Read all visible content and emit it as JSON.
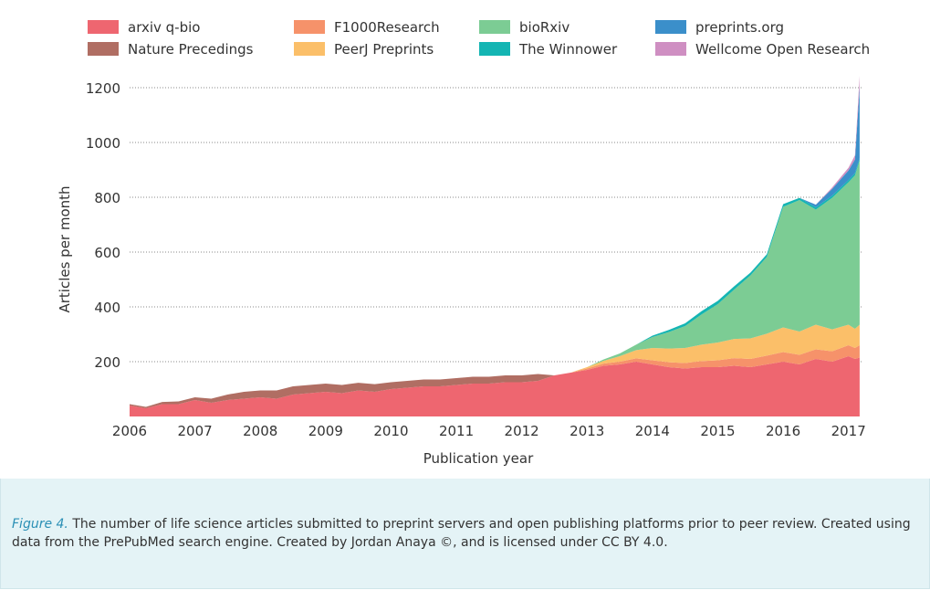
{
  "chart_data": {
    "type": "area",
    "stacked": true,
    "xlabel": "Publication year",
    "ylabel": "Articles per month",
    "xlim": [
      2006.0,
      2017.2
    ],
    "ylim": [
      0,
      1250
    ],
    "x_ticks": [
      2006,
      2007,
      2008,
      2009,
      2010,
      2011,
      2012,
      2013,
      2014,
      2015,
      2016,
      2017
    ],
    "y_ticks": [
      200,
      400,
      600,
      800,
      1000,
      1200
    ],
    "grid": "horizontal dotted",
    "legend_position": "top",
    "colors": {
      "arxiv q-bio": "#ee6670",
      "Nature Precedings": "#b06e63",
      "F1000Research": "#f6926a",
      "PeerJ Preprints": "#fbbf69",
      "bioRxiv": "#7ccc94",
      "The Winnower": "#14b5b3",
      "preprints.org": "#3b8fca",
      "Wellcome Open Research": "#cf8fc2"
    },
    "legend": [
      "arxiv q-bio",
      "F1000Research",
      "bioRxiv",
      "preprints.org",
      "Nature Precedings",
      "PeerJ Preprints",
      "The Winnower",
      "Wellcome Open Research"
    ],
    "x": [
      2006.0,
      2006.25,
      2006.5,
      2006.75,
      2007.0,
      2007.25,
      2007.5,
      2007.75,
      2008.0,
      2008.25,
      2008.5,
      2008.75,
      2009.0,
      2009.25,
      2009.5,
      2009.75,
      2010.0,
      2010.25,
      2010.5,
      2010.75,
      2011.0,
      2011.25,
      2011.5,
      2011.75,
      2012.0,
      2012.25,
      2012.5,
      2012.75,
      2013.0,
      2013.25,
      2013.5,
      2013.75,
      2014.0,
      2014.25,
      2014.5,
      2014.75,
      2015.0,
      2015.25,
      2015.5,
      2015.75,
      2016.0,
      2016.25,
      2016.5,
      2016.75,
      2017.0,
      2017.1,
      2017.17
    ],
    "series": [
      {
        "name": "arxiv q-bio",
        "values": [
          40,
          30,
          45,
          45,
          60,
          50,
          60,
          65,
          70,
          65,
          80,
          85,
          90,
          85,
          95,
          90,
          100,
          105,
          110,
          110,
          115,
          120,
          120,
          125,
          125,
          130,
          150,
          160,
          170,
          185,
          190,
          200,
          190,
          180,
          175,
          180,
          180,
          185,
          180,
          190,
          200,
          190,
          210,
          200,
          220,
          210,
          215
        ]
      },
      {
        "name": "Nature Precedings",
        "values": [
          5,
          5,
          8,
          10,
          10,
          15,
          20,
          25,
          25,
          30,
          30,
          30,
          30,
          30,
          28,
          28,
          25,
          25,
          25,
          25,
          25,
          25,
          25,
          25,
          25,
          25,
          0,
          0,
          0,
          0,
          0,
          0,
          0,
          0,
          0,
          0,
          0,
          0,
          0,
          0,
          0,
          0,
          0,
          0,
          0,
          0,
          0
        ]
      },
      {
        "name": "F1000Research",
        "values": [
          0,
          0,
          0,
          0,
          0,
          0,
          0,
          0,
          0,
          0,
          0,
          0,
          0,
          0,
          0,
          0,
          0,
          0,
          0,
          0,
          0,
          0,
          0,
          0,
          0,
          0,
          0,
          0,
          5,
          8,
          10,
          12,
          15,
          18,
          20,
          22,
          25,
          28,
          30,
          32,
          35,
          35,
          35,
          38,
          40,
          40,
          45
        ]
      },
      {
        "name": "PeerJ Preprints",
        "values": [
          0,
          0,
          0,
          0,
          0,
          0,
          0,
          0,
          0,
          0,
          0,
          0,
          0,
          0,
          0,
          0,
          0,
          0,
          0,
          0,
          0,
          0,
          0,
          0,
          0,
          0,
          0,
          0,
          5,
          10,
          20,
          30,
          45,
          50,
          55,
          60,
          65,
          70,
          75,
          80,
          90,
          85,
          90,
          80,
          75,
          70,
          75
        ]
      },
      {
        "name": "bioRxiv",
        "values": [
          0,
          0,
          0,
          0,
          0,
          0,
          0,
          0,
          0,
          0,
          0,
          0,
          0,
          0,
          0,
          0,
          0,
          0,
          0,
          0,
          0,
          0,
          0,
          0,
          0,
          0,
          0,
          0,
          0,
          5,
          10,
          20,
          40,
          60,
          80,
          110,
          140,
          180,
          230,
          280,
          440,
          480,
          420,
          480,
          520,
          560,
          600
        ]
      },
      {
        "name": "The Winnower",
        "values": [
          0,
          0,
          0,
          0,
          0,
          0,
          0,
          0,
          0,
          0,
          0,
          0,
          0,
          0,
          0,
          0,
          0,
          0,
          0,
          0,
          0,
          0,
          0,
          0,
          0,
          0,
          0,
          0,
          0,
          0,
          0,
          0,
          5,
          8,
          10,
          12,
          12,
          12,
          10,
          10,
          10,
          8,
          8,
          8,
          8,
          8,
          8
        ]
      },
      {
        "name": "preprints.org",
        "values": [
          0,
          0,
          0,
          0,
          0,
          0,
          0,
          0,
          0,
          0,
          0,
          0,
          0,
          0,
          0,
          0,
          0,
          0,
          0,
          0,
          0,
          0,
          0,
          0,
          0,
          0,
          0,
          0,
          0,
          0,
          0,
          0,
          0,
          0,
          0,
          0,
          0,
          0,
          0,
          0,
          0,
          0,
          10,
          25,
          35,
          50,
          260
        ]
      },
      {
        "name": "Wellcome Open Research",
        "values": [
          0,
          0,
          0,
          0,
          0,
          0,
          0,
          0,
          0,
          0,
          0,
          0,
          0,
          0,
          0,
          0,
          0,
          0,
          0,
          0,
          0,
          0,
          0,
          0,
          0,
          0,
          0,
          0,
          0,
          0,
          0,
          0,
          0,
          0,
          0,
          0,
          0,
          0,
          0,
          0,
          0,
          0,
          0,
          5,
          10,
          15,
          40
        ]
      }
    ]
  },
  "caption": {
    "label": "Figure 4.",
    "text": "The number of life science articles submitted to preprint servers and open publishing platforms prior to peer review. Created using data from the PrePubMed search engine. Created by Jordan Anaya ©, and is licensed under CC BY 4.0."
  }
}
